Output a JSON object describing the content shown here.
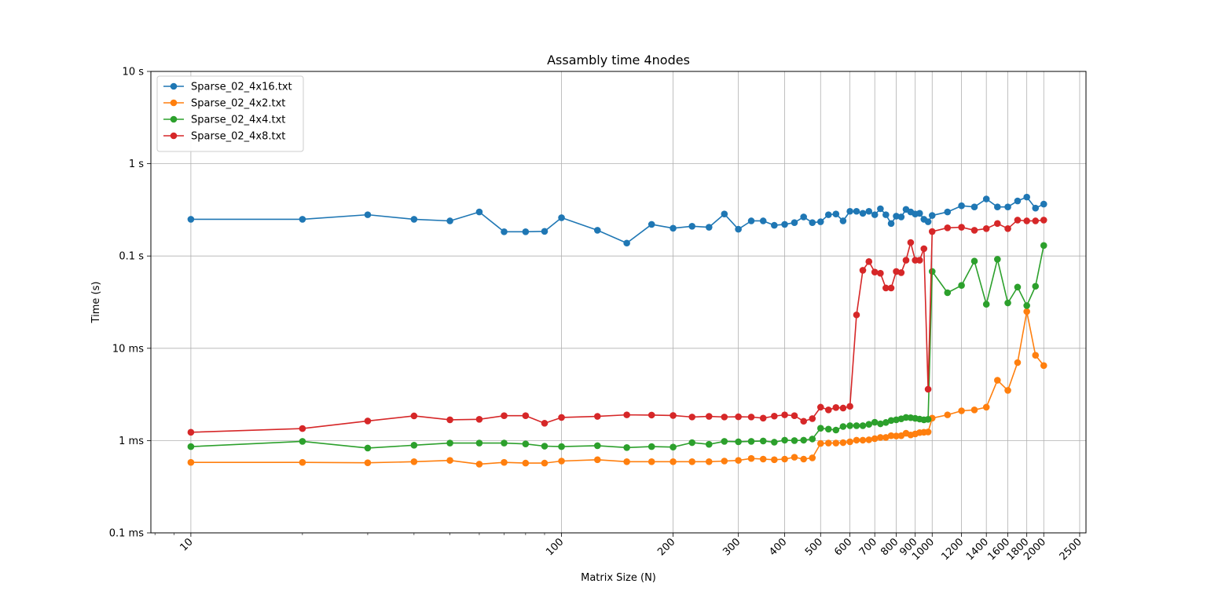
{
  "chart_data": {
    "type": "line",
    "title": "Assambly time 4nodes",
    "xlabel": "Matrix Size (N)",
    "ylabel": "Time (s)",
    "xscale": "log",
    "yscale": "log",
    "xlim": [
      7.8,
      2600
    ],
    "ylim": [
      0.0001,
      10
    ],
    "grid": true,
    "legend_position": "top-left",
    "x_ticks": [
      10,
      100,
      200,
      300,
      400,
      500,
      600,
      700,
      800,
      900,
      1000,
      1200,
      1400,
      1600,
      1800,
      2000,
      2500
    ],
    "x_tick_labels": [
      "10",
      "100",
      "200",
      "300",
      "400",
      "500",
      "600",
      "700",
      "800",
      "900",
      "1000",
      "1200",
      "1400",
      "1600",
      "1800",
      "2000",
      "2500"
    ],
    "y_ticks": [
      0.0001,
      0.001,
      0.01,
      0.1,
      1,
      10
    ],
    "y_tick_labels": [
      "0.1 ms",
      "1 ms",
      "10 ms",
      "0.1 s",
      "1 s",
      "10 s"
    ],
    "x": [
      10,
      20,
      30,
      40,
      50,
      60,
      70,
      80,
      90,
      100,
      125,
      150,
      175,
      200,
      225,
      250,
      275,
      300,
      325,
      350,
      375,
      400,
      425,
      450,
      475,
      500,
      525,
      550,
      575,
      600,
      625,
      650,
      675,
      700,
      725,
      750,
      775,
      800,
      825,
      850,
      875,
      900,
      925,
      950,
      975,
      1000,
      1100,
      1200,
      1300,
      1400,
      1500,
      1600,
      1700,
      1800,
      1900,
      2000
    ],
    "series": [
      {
        "name": "Sparse_02_4x16.txt",
        "color": "#1f77b4",
        "values": [
          0.25,
          0.25,
          0.28,
          0.25,
          0.24,
          0.3,
          0.183,
          0.183,
          0.185,
          0.26,
          0.19,
          0.138,
          0.22,
          0.2,
          0.21,
          0.205,
          0.285,
          0.195,
          0.24,
          0.24,
          0.215,
          0.22,
          0.23,
          0.265,
          0.23,
          0.235,
          0.28,
          0.285,
          0.24,
          0.305,
          0.305,
          0.29,
          0.305,
          0.28,
          0.325,
          0.28,
          0.225,
          0.27,
          0.265,
          0.32,
          0.3,
          0.285,
          0.29,
          0.25,
          0.235,
          0.275,
          0.3,
          0.35,
          0.34,
          0.415,
          0.34,
          0.34,
          0.395,
          0.435,
          0.33,
          0.365
        ]
      },
      {
        "name": "Sparse_02_4x2.txt",
        "color": "#ff7f0e",
        "values": [
          0.00058,
          0.00058,
          0.000575,
          0.00059,
          0.00061,
          0.000555,
          0.00058,
          0.00057,
          0.00057,
          0.0006,
          0.00062,
          0.00059,
          0.00059,
          0.00059,
          0.00059,
          0.00059,
          0.0006,
          0.00061,
          0.00064,
          0.00063,
          0.00062,
          0.00063,
          0.00066,
          0.00063,
          0.00065,
          0.00093,
          0.00094,
          0.00094,
          0.00095,
          0.00097,
          0.00101,
          0.00101,
          0.00102,
          0.00105,
          0.00108,
          0.00108,
          0.00113,
          0.00112,
          0.00113,
          0.0012,
          0.00115,
          0.00118,
          0.00122,
          0.00123,
          0.00124,
          0.00175,
          0.0019,
          0.0021,
          0.00215,
          0.0023,
          0.0045,
          0.0035,
          0.007,
          0.025,
          0.0084,
          0.0065
        ]
      },
      {
        "name": "Sparse_02_4x4.txt",
        "color": "#2ca02c",
        "values": [
          0.00086,
          0.00098,
          0.00083,
          0.00089,
          0.00094,
          0.00094,
          0.00094,
          0.00092,
          0.00087,
          0.00086,
          0.00088,
          0.00084,
          0.00086,
          0.00085,
          0.00095,
          0.00091,
          0.00098,
          0.00097,
          0.00098,
          0.00099,
          0.00096,
          0.00101,
          0.001,
          0.00101,
          0.00104,
          0.00136,
          0.00133,
          0.0013,
          0.00142,
          0.00145,
          0.00145,
          0.00145,
          0.0015,
          0.00158,
          0.00152,
          0.00157,
          0.00165,
          0.00168,
          0.00172,
          0.00178,
          0.00177,
          0.00174,
          0.00171,
          0.00168,
          0.0017,
          0.068,
          0.04,
          0.048,
          0.088,
          0.03,
          0.092,
          0.031,
          0.046,
          0.029,
          0.047,
          0.13
        ]
      },
      {
        "name": "Sparse_02_4x8.txt",
        "color": "#d62728",
        "values": [
          0.00123,
          0.00135,
          0.00163,
          0.00185,
          0.00168,
          0.0017,
          0.00186,
          0.00186,
          0.00154,
          0.00178,
          0.00183,
          0.0019,
          0.00189,
          0.00187,
          0.0018,
          0.00183,
          0.0018,
          0.00181,
          0.0018,
          0.00175,
          0.00184,
          0.0019,
          0.00186,
          0.00162,
          0.00173,
          0.0023,
          0.00215,
          0.00228,
          0.00225,
          0.00235,
          0.023,
          0.07,
          0.087,
          0.067,
          0.065,
          0.045,
          0.045,
          0.068,
          0.066,
          0.09,
          0.14,
          0.09,
          0.09,
          0.12,
          0.0036,
          0.184,
          0.202,
          0.205,
          0.19,
          0.198,
          0.225,
          0.198,
          0.245,
          0.24,
          0.24,
          0.245
        ]
      }
    ]
  }
}
